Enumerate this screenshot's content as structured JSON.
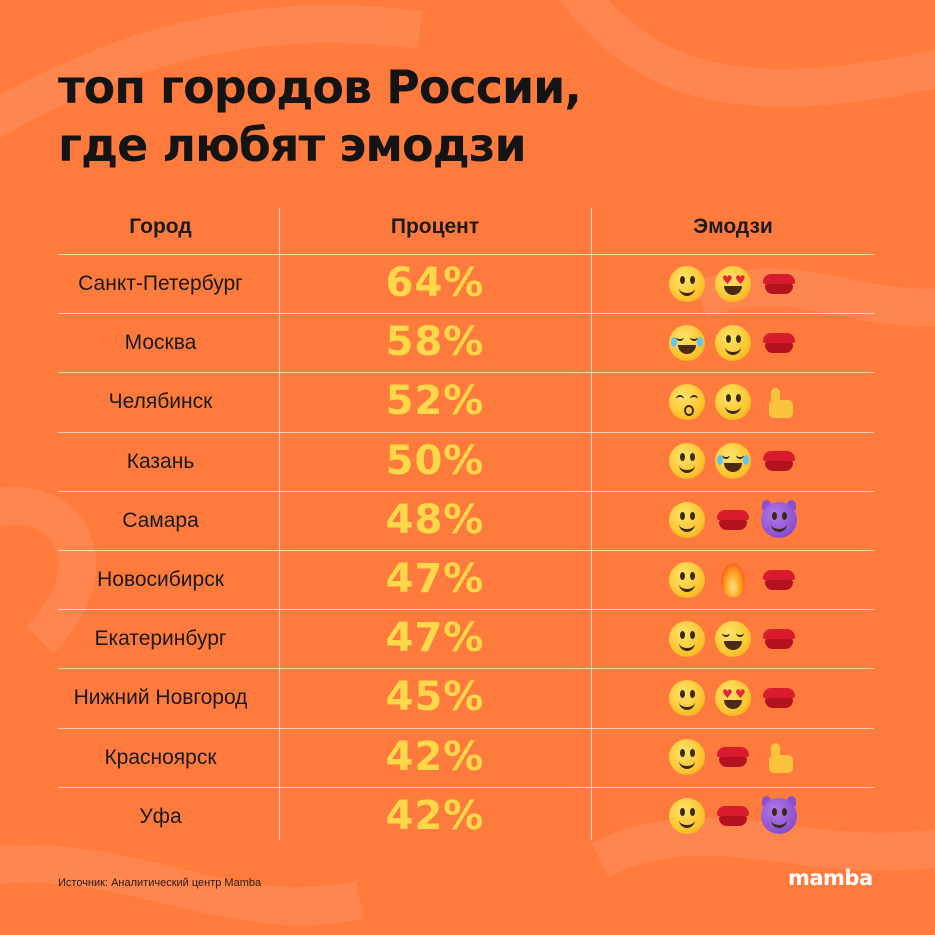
{
  "title": {
    "line1": "топ городов России,",
    "line2": "где любят эмодзи"
  },
  "columns": {
    "city": "Город",
    "percent": "Процент",
    "emoji": "Эмодзи"
  },
  "rows": [
    {
      "city": "Санкт-Петербург",
      "percent": "64%",
      "emojis": [
        "slightly-smiling-face",
        "heart-eyes-face",
        "kiss-lips"
      ]
    },
    {
      "city": "Москва",
      "percent": "58%",
      "emojis": [
        "rolling-laughing-face",
        "slightly-smiling-face",
        "kiss-lips"
      ]
    },
    {
      "city": "Челябинск",
      "percent": "52%",
      "emojis": [
        "kissing-face",
        "slightly-smiling-face",
        "thumbs-up"
      ]
    },
    {
      "city": "Казань",
      "percent": "50%",
      "emojis": [
        "slightly-smiling-face",
        "rolling-laughing-face",
        "kiss-lips"
      ]
    },
    {
      "city": "Самара",
      "percent": "48%",
      "emojis": [
        "slightly-smiling-face",
        "kiss-lips",
        "smiling-devil"
      ]
    },
    {
      "city": "Новосибирск",
      "percent": "47%",
      "emojis": [
        "slightly-smiling-face",
        "fire",
        "kiss-lips"
      ]
    },
    {
      "city": "Екатеринбург",
      "percent": "47%",
      "emojis": [
        "slightly-smiling-face",
        "grinning-squinting-face",
        "kiss-lips"
      ]
    },
    {
      "city": "Нижний Новгород",
      "percent": "45%",
      "emojis": [
        "slightly-smiling-face",
        "heart-eyes-face",
        "kiss-lips"
      ]
    },
    {
      "city": "Красноярск",
      "percent": "42%",
      "emojis": [
        "slightly-smiling-face",
        "kiss-lips",
        "thumbs-up"
      ]
    },
    {
      "city": "Уфа",
      "percent": "42%",
      "emojis": [
        "slightly-smiling-face",
        "kiss-lips",
        "smiling-devil"
      ]
    }
  ],
  "footer": {
    "source": "Источник: Аналитический центр Mamba",
    "logo": "mamba"
  },
  "colors": {
    "background": "#ff7a3d",
    "percent_text": "#ffd84a",
    "title_text": "#141414"
  }
}
